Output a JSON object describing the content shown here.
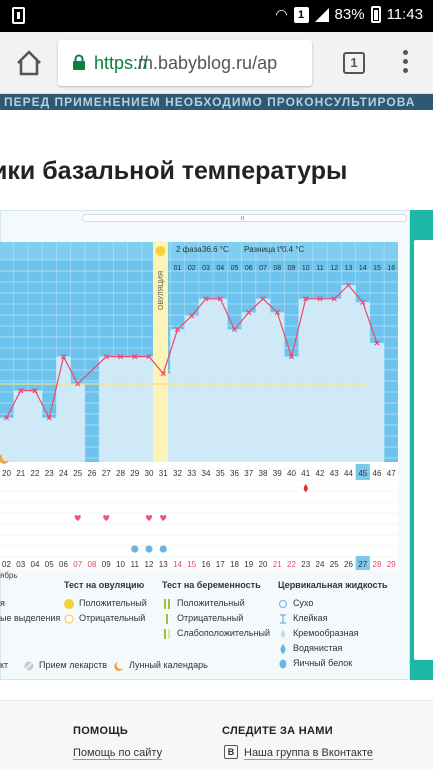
{
  "status_bar": {
    "badge": "1",
    "battery": "83%",
    "time": "11:43"
  },
  "browser": {
    "url_protocol": "https://",
    "url_rest": "m.babyblog.ru/ap",
    "tab_count": "1"
  },
  "banner_text": "ПЕРЕД ПРИМЕНЕНИЕМ НЕОБХОДИМО ПРОКОНСУЛЬТИРОВА",
  "page_title": "ики базальной температуры",
  "chart_header": {
    "phase_label": "2 фаза",
    "phase_value": "36.6 °C",
    "diff_label": "Разница t°",
    "diff_value": "0.4 °C",
    "ovulation_label": "ОВУЛЯЦИЯ"
  },
  "chart_data": {
    "type": "line",
    "cycle_days": [
      "20",
      "21",
      "22",
      "23",
      "24",
      "25",
      "26",
      "27",
      "28",
      "29",
      "30",
      "31",
      "32",
      "33",
      "34",
      "35",
      "36",
      "37",
      "38",
      "39",
      "40",
      "41",
      "42",
      "43",
      "44",
      "45",
      "46",
      "47"
    ],
    "phase_days": [
      "",
      "",
      "",
      "",
      "",
      "",
      "",
      "",
      "",
      "",
      "",
      "",
      "01",
      "02",
      "03",
      "04",
      "05",
      "06",
      "07",
      "08",
      "09",
      "10",
      "11",
      "12",
      "13",
      "14",
      "15",
      "16"
    ],
    "temperatures": [
      0.26,
      0.42,
      0.42,
      0.26,
      0.62,
      0.46,
      null,
      0.62,
      0.62,
      0.62,
      0.62,
      0.52,
      0.78,
      0.86,
      0.96,
      0.96,
      0.78,
      0.88,
      0.96,
      0.88,
      0.62,
      0.96,
      0.96,
      0.96,
      1.04,
      0.94,
      0.7,
      null
    ],
    "dates": [
      "02",
      "03",
      "04",
      "05",
      "06",
      "07",
      "08",
      "09",
      "10",
      "11",
      "12",
      "13",
      "14",
      "15",
      "16",
      "17",
      "18",
      "19",
      "20",
      "21",
      "22",
      "23",
      "24",
      "25",
      "26",
      "27",
      "28",
      "29"
    ],
    "month_label": "ябрь",
    "highlight_cycle_day": "45",
    "highlight_date": "27",
    "weekend_dates": [
      "07",
      "08",
      "14",
      "15",
      "21",
      "22",
      "28",
      "29"
    ],
    "hearts_days": [
      "25",
      "27",
      "30",
      "31"
    ],
    "drop_days": [
      "29",
      "30",
      "31"
    ],
    "blood_day": "41"
  },
  "legend": {
    "col1": {
      "rows": [
        "я",
        "ые выделения"
      ]
    },
    "col2": {
      "title": "Тест на овуляцию",
      "rows": [
        "Положительный",
        "Отрицательный"
      ]
    },
    "col3": {
      "title": "Тест на беременность",
      "rows": [
        "Положительный",
        "Отрицательный",
        "Слабоположительный"
      ]
    },
    "col4": {
      "title": "Цервикальная жидкость",
      "rows": [
        "Сухо",
        "Клейкая",
        "Кремообразная",
        "Водянистая",
        "Яичный белок"
      ]
    },
    "bottom": [
      "кт",
      "Прием лекарств",
      "Лунный календарь"
    ]
  },
  "footer": {
    "help_title": "ПОМОЩЬ",
    "help_link": "Помощь по сайту",
    "follow_title": "СЛЕДИТЕ ЗА НАМИ",
    "vk_link": "Наша группа в Вконтакте",
    "vk_icon": "В"
  },
  "colors": {
    "chart_blue": "#6cc4ee",
    "bar_fill": "#cfe9f7",
    "line_red": "#ea4a6b",
    "ovulation_yellow": "#f7e36e",
    "teal": "#1db7a8"
  }
}
